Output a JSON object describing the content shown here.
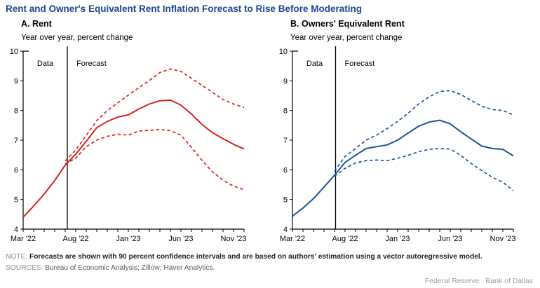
{
  "title": "Rent and Owner's Equivalent Rent Inflation Forecast to Rise Before Moderating",
  "note": {
    "label": "NOTE:",
    "text": "Forecasts are shown with 90 percent confidence intervals and are based on authors' estimation using a vector autoregressive model."
  },
  "sources": {
    "label": "SOURCES:",
    "text": "Bureau of Economic Analysis; Zillow; Haver Analytics."
  },
  "footer": {
    "wordmark_left": "Federal Reserve",
    "wordmark_right": "Bank of Dallas"
  },
  "colors": {
    "title_blue": "#1b468f",
    "rent_red": "#d8201f",
    "oer_blue": "#1b5494",
    "axis_black": "#000000",
    "note_label_gray": "#8c8c8c",
    "wordmark_gray": "#9e9e9e"
  },
  "chart_data": [
    {
      "type": "line",
      "panel_label": "A. Rent",
      "axis_title": "Year over year, percent change",
      "color": "#d8201f",
      "ylim": [
        4,
        10
      ],
      "yticks": [
        4,
        5,
        6,
        7,
        8,
        9,
        10
      ],
      "x_tick_labels": [
        "Mar '22",
        "Aug '22",
        "Jan '23",
        "Jun '23",
        "Nov '23"
      ],
      "x_tick_positions": [
        0,
        5,
        10,
        15,
        20
      ],
      "months": [
        "Mar '22",
        "Apr '22",
        "May '22",
        "Jun '22",
        "Jul '22",
        "Aug '22",
        "Sep '22",
        "Oct '22",
        "Nov '22",
        "Dec '22",
        "Jan '23",
        "Feb '23",
        "Mar '23",
        "Apr '23",
        "May '23",
        "Jun '23",
        "Jul '23",
        "Aug '23",
        "Sep '23",
        "Oct '23",
        "Nov '23",
        "Dec '23"
      ],
      "divider_month": 4.2,
      "annotations": [
        "Data",
        "Forecast"
      ],
      "series": [
        {
          "name": "Rent inflation (data + forecast)",
          "style": "solid",
          "start_index": 0,
          "values": [
            4.4,
            4.78,
            5.18,
            5.64,
            6.16,
            6.53,
            6.96,
            7.42,
            7.63,
            7.78,
            7.85,
            8.05,
            8.22,
            8.33,
            8.35,
            8.18,
            7.88,
            7.53,
            7.25,
            7.05,
            6.86,
            6.7
          ]
        },
        {
          "name": "90 percent confidence upper bound",
          "style": "dashed",
          "start_index": 4,
          "values": [
            6.3,
            6.67,
            7.16,
            7.66,
            8.0,
            8.26,
            8.52,
            8.77,
            9.01,
            9.28,
            9.4,
            9.32,
            9.08,
            8.85,
            8.61,
            8.37,
            8.22,
            8.1
          ]
        },
        {
          "name": "90 percent confidence lower bound",
          "style": "dashed",
          "start_index": 4,
          "values": [
            6.2,
            6.39,
            6.78,
            7.0,
            7.13,
            7.2,
            7.17,
            7.31,
            7.33,
            7.36,
            7.32,
            7.17,
            6.76,
            6.32,
            5.93,
            5.65,
            5.45,
            5.33
          ]
        }
      ]
    },
    {
      "type": "line",
      "panel_label": "B. Owners' Equivalent Rent",
      "axis_title": "Year over year, percent change",
      "color": "#1b5494",
      "ylim": [
        4,
        10
      ],
      "yticks": [
        4,
        5,
        6,
        7,
        8,
        9,
        10
      ],
      "x_tick_labels": [
        "Mar '22",
        "Aug '22",
        "Jan '23",
        "Jun '23",
        "Nov '23"
      ],
      "x_tick_positions": [
        0,
        5,
        10,
        15,
        20
      ],
      "months": [
        "Mar '22",
        "Apr '22",
        "May '22",
        "Jun '22",
        "Jul '22",
        "Aug '22",
        "Sep '22",
        "Oct '22",
        "Nov '22",
        "Dec '22",
        "Jan '23",
        "Feb '23",
        "Mar '23",
        "Apr '23",
        "May '23",
        "Jun '23",
        "Jul '23",
        "Aug '23",
        "Sep '23",
        "Oct '23",
        "Nov '23",
        "Dec '23"
      ],
      "divider_month": 4.1,
      "annotations": [
        "Data",
        "Forecast"
      ],
      "series": [
        {
          "name": "Owners' equivalent rent inflation (data + forecast)",
          "style": "solid",
          "start_index": 0,
          "values": [
            4.44,
            4.71,
            5.03,
            5.42,
            5.82,
            6.25,
            6.49,
            6.72,
            6.78,
            6.84,
            7.0,
            7.24,
            7.47,
            7.61,
            7.67,
            7.55,
            7.28,
            7.04,
            6.8,
            6.72,
            6.69,
            6.47
          ]
        },
        {
          "name": "90 percent confidence upper bound",
          "style": "dashed",
          "start_index": 4,
          "values": [
            5.95,
            6.45,
            6.72,
            7.0,
            7.17,
            7.39,
            7.63,
            7.91,
            8.22,
            8.46,
            8.64,
            8.67,
            8.54,
            8.34,
            8.14,
            8.03,
            8.0,
            7.85
          ]
        },
        {
          "name": "90 percent confidence lower bound",
          "style": "dashed",
          "start_index": 4,
          "values": [
            5.78,
            6.05,
            6.23,
            6.31,
            6.33,
            6.31,
            6.39,
            6.49,
            6.61,
            6.69,
            6.72,
            6.7,
            6.49,
            6.21,
            5.97,
            5.75,
            5.58,
            5.3
          ]
        }
      ]
    }
  ]
}
